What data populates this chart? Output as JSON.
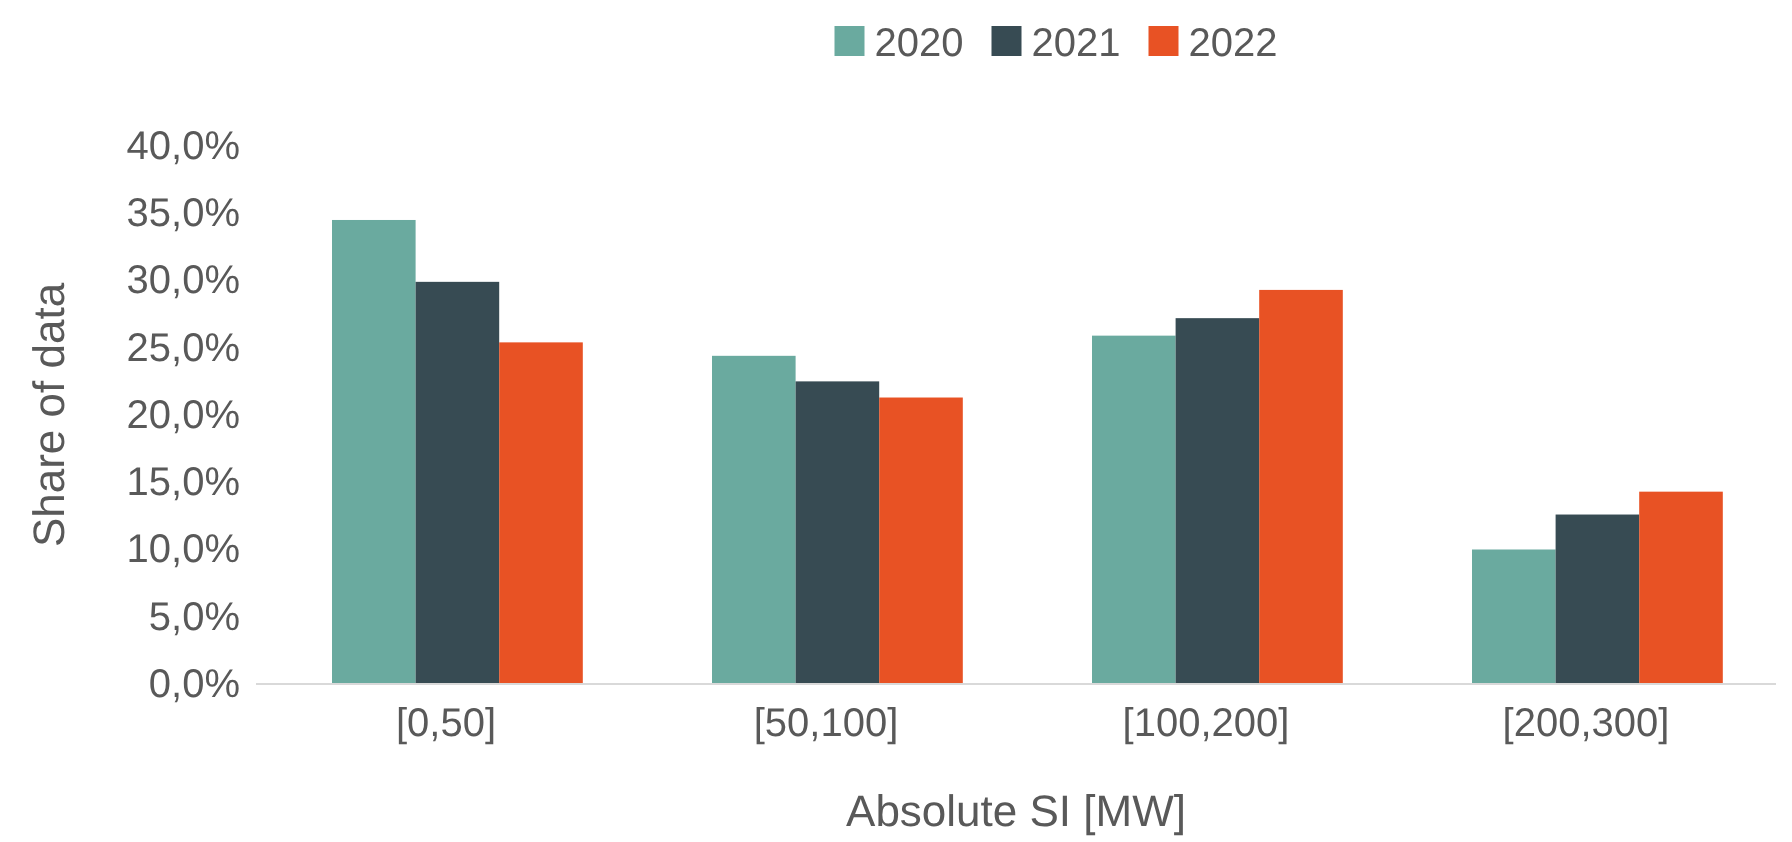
{
  "chart_data": {
    "type": "bar",
    "xlabel": "Absolute SI [MW]",
    "ylabel": "Share of data",
    "categories": [
      "[0,50]",
      "[50,100]",
      "[100,200]",
      "[200,300]"
    ],
    "series": [
      {
        "name": "2020",
        "color": "#6aaa9f",
        "values": [
          34.5,
          24.4,
          25.9,
          10.0
        ]
      },
      {
        "name": "2021",
        "color": "#374b53",
        "values": [
          29.9,
          22.5,
          27.2,
          12.6
        ]
      },
      {
        "name": "2022",
        "color": "#e85224",
        "values": [
          25.4,
          21.3,
          29.3,
          14.3
        ]
      }
    ],
    "ylim": [
      0,
      40
    ],
    "yticks": [
      {
        "value": 0,
        "label": "0,0%"
      },
      {
        "value": 5,
        "label": "5,0%"
      },
      {
        "value": 10,
        "label": "10,0%"
      },
      {
        "value": 15,
        "label": "15,0%"
      },
      {
        "value": 20,
        "label": "20,0%"
      },
      {
        "value": 25,
        "label": "25,0%"
      },
      {
        "value": 30,
        "label": "30,0%"
      },
      {
        "value": 35,
        "label": "35,0%"
      },
      {
        "value": 40,
        "label": "40,0%"
      }
    ],
    "legend": "top",
    "grid": false
  }
}
